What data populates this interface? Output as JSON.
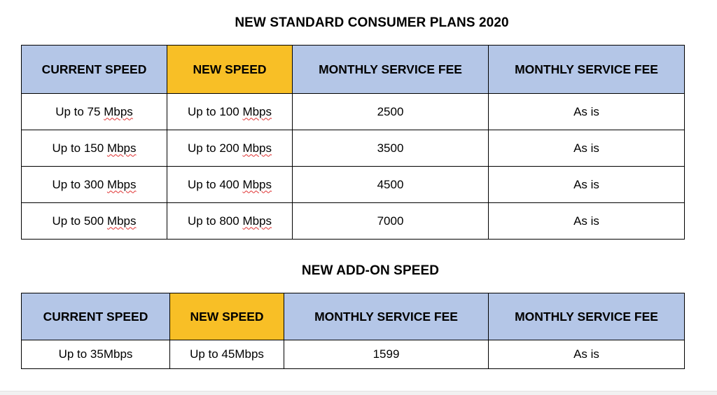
{
  "standard_plans": {
    "title": "NEW STANDARD CONSUMER PLANS 2020",
    "headers": [
      "CURRENT SPEED",
      "NEW SPEED",
      "MONTHLY SERVICE FEE",
      "MONTHLY SERVICE FEE"
    ],
    "highlight_color": "#f8bf26",
    "header_color": "#b4c6e7",
    "rows": [
      {
        "current_prefix": "Up to 75 ",
        "current_unit": "Mbps",
        "new_prefix": "Up to 100 ",
        "new_unit": "Mbps",
        "fee": "2500",
        "fee2": "As is"
      },
      {
        "current_prefix": "Up to 150 ",
        "current_unit": "Mbps",
        "new_prefix": "Up to 200 ",
        "new_unit": "Mbps",
        "fee": "3500",
        "fee2": "As is"
      },
      {
        "current_prefix": "Up to 300 ",
        "current_unit": "Mbps",
        "new_prefix": "Up to 400 ",
        "new_unit": "Mbps",
        "fee": "4500",
        "fee2": "As is"
      },
      {
        "current_prefix": "Up to 500 ",
        "current_unit": "Mbps",
        "new_prefix": "Up to 800 ",
        "new_unit": "Mbps",
        "fee": "7000",
        "fee2": "As is"
      }
    ]
  },
  "addon_plans": {
    "title": "NEW ADD-ON SPEED",
    "headers": [
      "CURRENT SPEED",
      "NEW SPEED",
      "MONTHLY SERVICE FEE",
      "MONTHLY SERVICE FEE"
    ],
    "rows": [
      {
        "current": "Up to 35Mbps",
        "new": "Up to 45Mbps",
        "fee": "1599",
        "fee2": "As is"
      }
    ]
  }
}
